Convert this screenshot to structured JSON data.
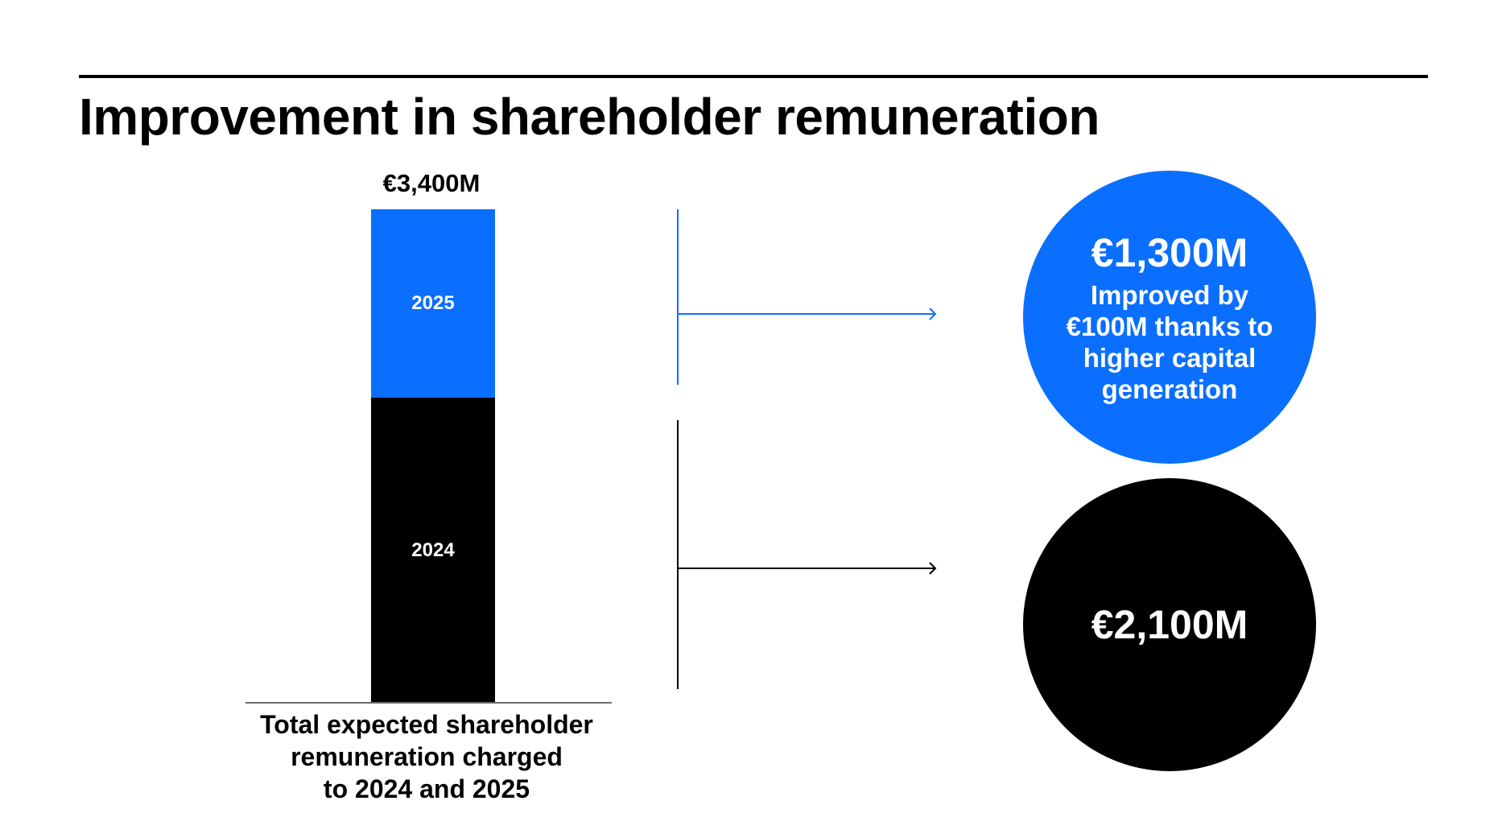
{
  "title": "Improvement in shareholder remuneration",
  "colors": {
    "accent": "#0a6fff",
    "dark": "#000000",
    "text_on_fill": "#ffffff"
  },
  "chart_data": {
    "type": "bar",
    "stacked": true,
    "categories": [
      "Total expected shareholder remuneration charged to 2024 and 2025"
    ],
    "series": [
      {
        "name": "2024",
        "values": [
          2100
        ],
        "color": "#000000"
      },
      {
        "name": "2025",
        "values": [
          1300
        ],
        "color": "#0a6fff"
      }
    ],
    "total_label": "€3,400M",
    "xlabel": "Total expected shareholder remuneration charged to 2024 and 2025",
    "unit": "€M"
  },
  "caption_lines": [
    "Total expected shareholder",
    "remuneration charged",
    "to 2024 and 2025"
  ],
  "callouts": [
    {
      "value": "€1,300M",
      "note": "Improved by €100M thanks to higher capital generation",
      "color": "#0a6fff"
    },
    {
      "value": "€2,100M",
      "note": "",
      "color": "#000000"
    }
  ]
}
